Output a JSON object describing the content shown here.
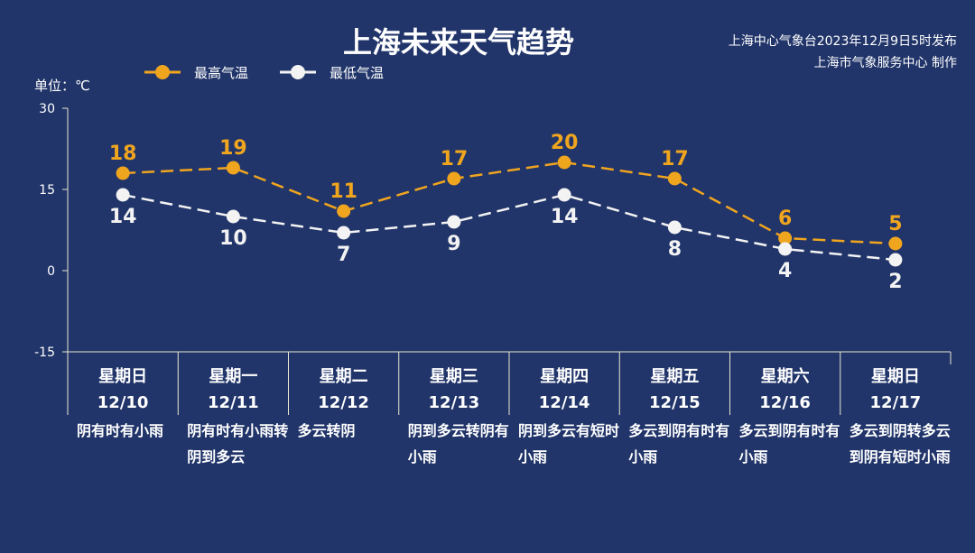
{
  "header": {
    "title": "上海未来天气趋势",
    "publisher_line1": "上海中心气象台2023年12月9日5时发布",
    "publisher_line2": "上海市气象服务中心 制作",
    "unit_label": "单位：℃"
  },
  "colors": {
    "background": "#21356a",
    "high_series": "#f0a51e",
    "low_series": "#f3f3f3",
    "axis": "#e8e8d0"
  },
  "chart_data": {
    "type": "line",
    "ylim": [
      -15,
      30
    ],
    "yticks": [
      30,
      15,
      0,
      -15
    ],
    "legend_position": "top-left",
    "categories": [
      {
        "weekday": "星期日",
        "date": "12/10",
        "weather": "阴有时有小雨"
      },
      {
        "weekday": "星期一",
        "date": "12/11",
        "weather": "阴有时有小雨转阴到多云"
      },
      {
        "weekday": "星期二",
        "date": "12/12",
        "weather": "多云转阴"
      },
      {
        "weekday": "星期三",
        "date": "12/13",
        "weather": "阴到多云转阴有小雨"
      },
      {
        "weekday": "星期四",
        "date": "12/14",
        "weather": "阴到多云有短时小雨"
      },
      {
        "weekday": "星期五",
        "date": "12/15",
        "weather": "多云到阴有时有小雨"
      },
      {
        "weekday": "星期六",
        "date": "12/16",
        "weather": "多云到阴有时有小雨"
      },
      {
        "weekday": "星期日",
        "date": "12/17",
        "weather": "多云到阴转多云到阴有短时小雨"
      }
    ],
    "series": [
      {
        "name": "最高气温",
        "values": [
          18,
          19,
          11,
          17,
          20,
          17,
          6,
          5
        ]
      },
      {
        "name": "最低气温",
        "values": [
          14,
          10,
          7,
          9,
          14,
          8,
          4,
          2
        ]
      }
    ]
  }
}
